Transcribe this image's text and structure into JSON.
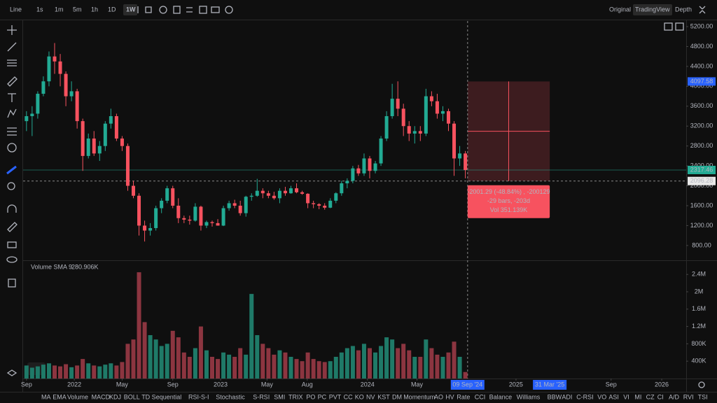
{
  "toolbar": {
    "intervals": [
      "Line",
      "1s",
      "1m",
      "5m",
      "1h",
      "1D",
      "1W"
    ],
    "views": [
      "Original",
      "TradingView",
      "Depth"
    ]
  },
  "chart_data": {
    "type": "candlestick",
    "up_color": "#22ab94",
    "down_color": "#f7525f",
    "candles": [
      [
        3300,
        3500,
        3100,
        3400
      ],
      [
        3400,
        3600,
        3000,
        3450
      ],
      [
        3450,
        3900,
        3350,
        3850
      ],
      [
        3850,
        4200,
        3800,
        4100
      ],
      [
        4100,
        4700,
        4000,
        4600
      ],
      [
        4600,
        4870,
        4250,
        4500
      ],
      [
        4500,
        4650,
        4000,
        4250
      ],
      [
        4250,
        4300,
        3600,
        3800
      ],
      [
        3800,
        4100,
        3700,
        3900
      ],
      [
        3900,
        3950,
        3150,
        3300
      ],
      [
        3300,
        3350,
        2300,
        2600
      ],
      [
        2600,
        3050,
        2550,
        2950
      ],
      [
        2950,
        3100,
        2600,
        2650
      ],
      [
        2650,
        2900,
        2500,
        2800
      ],
      [
        2800,
        3300,
        2700,
        3250
      ],
      [
        3250,
        3550,
        3150,
        3400
      ],
      [
        3400,
        3450,
        2900,
        2950
      ],
      [
        2950,
        3000,
        2700,
        2800
      ],
      [
        2800,
        2850,
        1900,
        2000
      ],
      [
        2000,
        2100,
        1750,
        1800
      ],
      [
        1800,
        1850,
        1000,
        1200
      ],
      [
        1200,
        1300,
        880,
        1100
      ],
      [
        1100,
        1250,
        1000,
        1150
      ],
      [
        1150,
        1600,
        1100,
        1550
      ],
      [
        1550,
        1750,
        1450,
        1700
      ],
      [
        1700,
        2000,
        1650,
        1950
      ],
      [
        1950,
        2000,
        1550,
        1600
      ],
      [
        1600,
        1750,
        1250,
        1350
      ],
      [
        1350,
        1400,
        1250,
        1320
      ],
      [
        1320,
        1400,
        1220,
        1300
      ],
      [
        1300,
        1650,
        1280,
        1580
      ],
      [
        1580,
        1600,
        1100,
        1200
      ],
      [
        1200,
        1300,
        1150,
        1270
      ],
      [
        1270,
        1300,
        1180,
        1250
      ],
      [
        1250,
        1330,
        1200,
        1200
      ],
      [
        1200,
        1600,
        1190,
        1550
      ],
      [
        1550,
        1700,
        1500,
        1650
      ],
      [
        1650,
        1720,
        1550,
        1600
      ],
      [
        1600,
        1700,
        1400,
        1450
      ],
      [
        1450,
        1800,
        1380,
        1780
      ],
      [
        1780,
        1850,
        1700,
        1800
      ],
      [
        1800,
        2140,
        1780,
        1900
      ],
      [
        1900,
        1950,
        1750,
        1850
      ],
      [
        1850,
        1900,
        1750,
        1800
      ],
      [
        1800,
        1880,
        1720,
        1750
      ],
      [
        1750,
        1950,
        1650,
        1900
      ],
      [
        1900,
        1980,
        1800,
        1850
      ],
      [
        1850,
        2000,
        1840,
        1950
      ],
      [
        1950,
        2050,
        1850,
        1870
      ],
      [
        1870,
        1900,
        1820,
        1840
      ],
      [
        1840,
        1850,
        1550,
        1650
      ],
      [
        1650,
        1700,
        1550,
        1630
      ],
      [
        1630,
        1650,
        1530,
        1600
      ],
      [
        1600,
        1650,
        1520,
        1560
      ],
      [
        1560,
        1750,
        1550,
        1700
      ],
      [
        1700,
        1870,
        1650,
        1850
      ],
      [
        1850,
        2100,
        1800,
        2050
      ],
      [
        2050,
        2150,
        1950,
        2100
      ],
      [
        2100,
        2400,
        2050,
        2350
      ],
      [
        2350,
        2420,
        2200,
        2250
      ],
      [
        2250,
        2650,
        2200,
        2550
      ],
      [
        2550,
        2600,
        2150,
        2300
      ],
      [
        2300,
        2500,
        2250,
        2450
      ],
      [
        2450,
        3000,
        2400,
        2950
      ],
      [
        2950,
        3500,
        2900,
        3400
      ],
      [
        3400,
        4050,
        3350,
        3750
      ],
      [
        3750,
        4100,
        3400,
        3550
      ],
      [
        3550,
        3650,
        3000,
        3200
      ],
      [
        3200,
        3300,
        2900,
        3050
      ],
      [
        3050,
        3200,
        2850,
        3100
      ],
      [
        3100,
        3200,
        2900,
        3050
      ],
      [
        3050,
        3950,
        3000,
        3800
      ],
      [
        3800,
        3900,
        3600,
        3700
      ],
      [
        3700,
        3850,
        3350,
        3450
      ],
      [
        3450,
        3600,
        3300,
        3500
      ],
      [
        3500,
        3550,
        3100,
        3250
      ],
      [
        3250,
        3300,
        2200,
        2550
      ],
      [
        2550,
        2800,
        2400,
        2650
      ],
      [
        2650,
        2700,
        2150,
        2317.46
      ]
    ],
    "xlim": [
      -0.6,
      117.25
    ],
    "xticks": [
      {
        "value": 0,
        "label": "Sep"
      },
      {
        "value": 8.5,
        "label": "2022"
      },
      {
        "value": 17,
        "label": "May"
      },
      {
        "value": 26,
        "label": "Sep"
      },
      {
        "value": 34.5,
        "label": "2023"
      },
      {
        "value": 42.75,
        "label": "May"
      },
      {
        "value": 49.9,
        "label": "Aug"
      },
      {
        "value": 60.6,
        "label": "2024"
      },
      {
        "value": 69.4,
        "label": "May"
      },
      {
        "value": 87,
        "label": "2025"
      },
      {
        "value": 103.9,
        "label": "Sep"
      },
      {
        "value": 112.9,
        "label": "2026"
      }
    ],
    "x_markers": [
      {
        "value": 78.4,
        "label": "09 Sep '24"
      },
      {
        "value": 93,
        "label": "31 Mar '25"
      }
    ],
    "ylim": [
      503,
      5313
    ],
    "yticks": [
      {
        "value": 800,
        "label": "800.00"
      },
      {
        "value": 1200,
        "label": "1200.00"
      },
      {
        "value": 1600,
        "label": "1600.00"
      },
      {
        "value": 2000,
        "label": "2000.00"
      },
      {
        "value": 2400,
        "label": "2400.00"
      },
      {
        "value": 2800,
        "label": "2800.00"
      },
      {
        "value": 3200,
        "label": "3200.00"
      },
      {
        "value": 3600,
        "label": "3600.00"
      },
      {
        "value": 4000,
        "label": "4000.00"
      },
      {
        "value": 4400,
        "label": "4400.00"
      },
      {
        "value": 4800,
        "label": "4800.00"
      },
      {
        "value": 5200,
        "label": "5200.00"
      }
    ],
    "measure_top": 4097.58,
    "last_price": 2317.46,
    "crosshair_price": 2096.28,
    "measure_info": [
      "-2001.29 (-48.84%) , -200129",
      "-29 bars, -203d",
      "Vol 351.139K"
    ],
    "volume": {
      "title": "Volume SMA 9",
      "sma_label": "280.906K",
      "up_color": "#1f7a68",
      "down_color": "#8c3540",
      "values": [
        300000,
        250000,
        280000,
        320000,
        350000,
        300000,
        280000,
        330000,
        260000,
        300000,
        450000,
        350000,
        300000,
        280000,
        320000,
        350000,
        300000,
        380000,
        800000,
        900000,
        2450000,
        1300000,
        1000000,
        900000,
        750000,
        800000,
        1100000,
        950000,
        600000,
        500000,
        700000,
        1200000,
        650000,
        500000,
        450000,
        600000,
        550000,
        500000,
        700000,
        550000,
        1950000,
        1000000,
        800000,
        700000,
        550000,
        650000,
        600000,
        500000,
        450000,
        400000,
        600000,
        450000,
        400000,
        380000,
        400000,
        500000,
        600000,
        700000,
        750000,
        650000,
        800000,
        700000,
        600000,
        750000,
        950000,
        900000,
        700000,
        800000,
        650000,
        500000,
        500000,
        900000,
        700000,
        550000,
        500000,
        600000,
        850000,
        500000,
        150000
      ],
      "ylim": [
        0,
        2694000
      ],
      "yticks": [
        {
          "value": 400000,
          "label": "400K"
        },
        {
          "value": 800000,
          "label": "800K"
        },
        {
          "value": 1200000,
          "label": "1.2M"
        },
        {
          "value": 1600000,
          "label": "1.6M"
        },
        {
          "value": 2000000,
          "label": "2M"
        },
        {
          "value": 2400000,
          "label": "2.4M"
        }
      ]
    }
  },
  "indicators": [
    "MA",
    "EMA",
    "Volume",
    "MACD",
    "KDJ",
    "BOLL",
    "TD Sequential",
    "RSI-S-I",
    "Stochastic",
    "S-RSI",
    "SMI",
    "TRIX",
    "PO",
    "PC",
    "PVT",
    "CC",
    "KO",
    "NV",
    "KST",
    "DM",
    "Momentum",
    "AO",
    "HV",
    "Rate",
    "CCI",
    "Balance",
    "Williams",
    "BBW",
    "ADI",
    "C-RSI",
    "VO",
    "ASI",
    "VI",
    "MI",
    "CZ",
    "CI",
    "A/D",
    "RVI",
    "TSI"
  ]
}
